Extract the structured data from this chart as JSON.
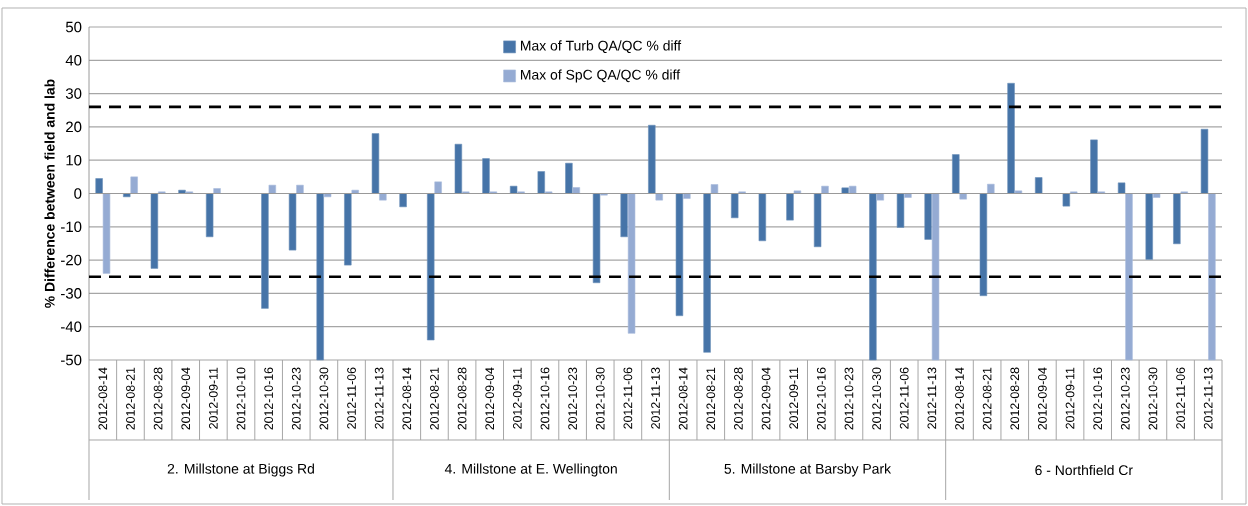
{
  "chart_data": {
    "type": "bar",
    "ylabel": "% Difference between field and lab",
    "categories": [
      "2012-08-14",
      "2012-08-21",
      "2012-08-28",
      "2012-09-04",
      "2012-09-11",
      "2012-10-10",
      "2012-10-16",
      "2012-10-23",
      "2012-10-30",
      "2012-11-06",
      "2012-11-13",
      "2012-08-14",
      "2012-08-21",
      "2012-08-28",
      "2012-09-04",
      "2012-09-11",
      "2012-10-16",
      "2012-10-23",
      "2012-10-30",
      "2012-11-06",
      "2012-11-13",
      "2012-08-14",
      "2012-08-21",
      "2012-08-28",
      "2012-09-04",
      "2012-09-11",
      "2012-10-16",
      "2012-10-23",
      "2012-10-30",
      "2012-11-06",
      "2012-11-13",
      "2012-08-14",
      "2012-08-21",
      "2012-08-28",
      "2012-09-04",
      "2012-09-11",
      "2012-10-16",
      "2012-10-23",
      "2012-10-30",
      "2012-11-06",
      "2012-11-13"
    ],
    "series": [
      {
        "name": "Max of Turb QA/QC % diff",
        "color": "#4674a8",
        "values": [
          4.5,
          -1,
          -22.5,
          1,
          -13,
          null,
          -34.5,
          -17,
          -50,
          -21.5,
          18,
          -4,
          -44,
          14.8,
          10.5,
          2.2,
          6.6,
          9.1,
          -26.8,
          -13,
          20.5,
          -36.7,
          -47.7,
          -7.3,
          -14.2,
          -8,
          -16,
          1.7,
          -50,
          -10.2,
          -13.8,
          11.7,
          -30.7,
          33.1,
          4.8,
          -3.8,
          16.1,
          3.2,
          -19.8,
          -15.1,
          19.3
        ]
      },
      {
        "name": "Max of SpC QA/QC % diff",
        "color": "#95abd3",
        "values": [
          -24,
          5,
          0.5,
          0.5,
          1.5,
          null,
          2.5,
          2.5,
          -1,
          1,
          -2,
          null,
          3.5,
          0.5,
          0.5,
          0.5,
          0.5,
          1.8,
          -0.5,
          -42,
          -2,
          -1.5,
          2.7,
          0.5,
          null,
          0.8,
          2.2,
          2.2,
          -2,
          -1.2,
          -50,
          -1.7,
          2.8,
          0.8,
          null,
          0.5,
          0.5,
          -50,
          -1.2,
          0.5,
          -50
        ]
      }
    ],
    "annotations": [
      "2. Millstone at Biggs Rd",
      "4. Millstone at E. Wellington",
      "5. Millstone at Barsby Park",
      "6 - Northfield Cr"
    ],
    "ylim": [
      -50,
      50
    ],
    "yticks": [
      -50,
      -40,
      -30,
      -20,
      -10,
      0,
      10,
      20,
      30,
      40,
      50
    ],
    "ref_lines": [
      {
        "axis": "y",
        "value": 26,
        "color": "#000000",
        "line_style": "dashed"
      },
      {
        "axis": "y",
        "value": -25,
        "color": "#000000",
        "line_style": "dashed"
      }
    ],
    "grid": "y",
    "legend": "top"
  }
}
